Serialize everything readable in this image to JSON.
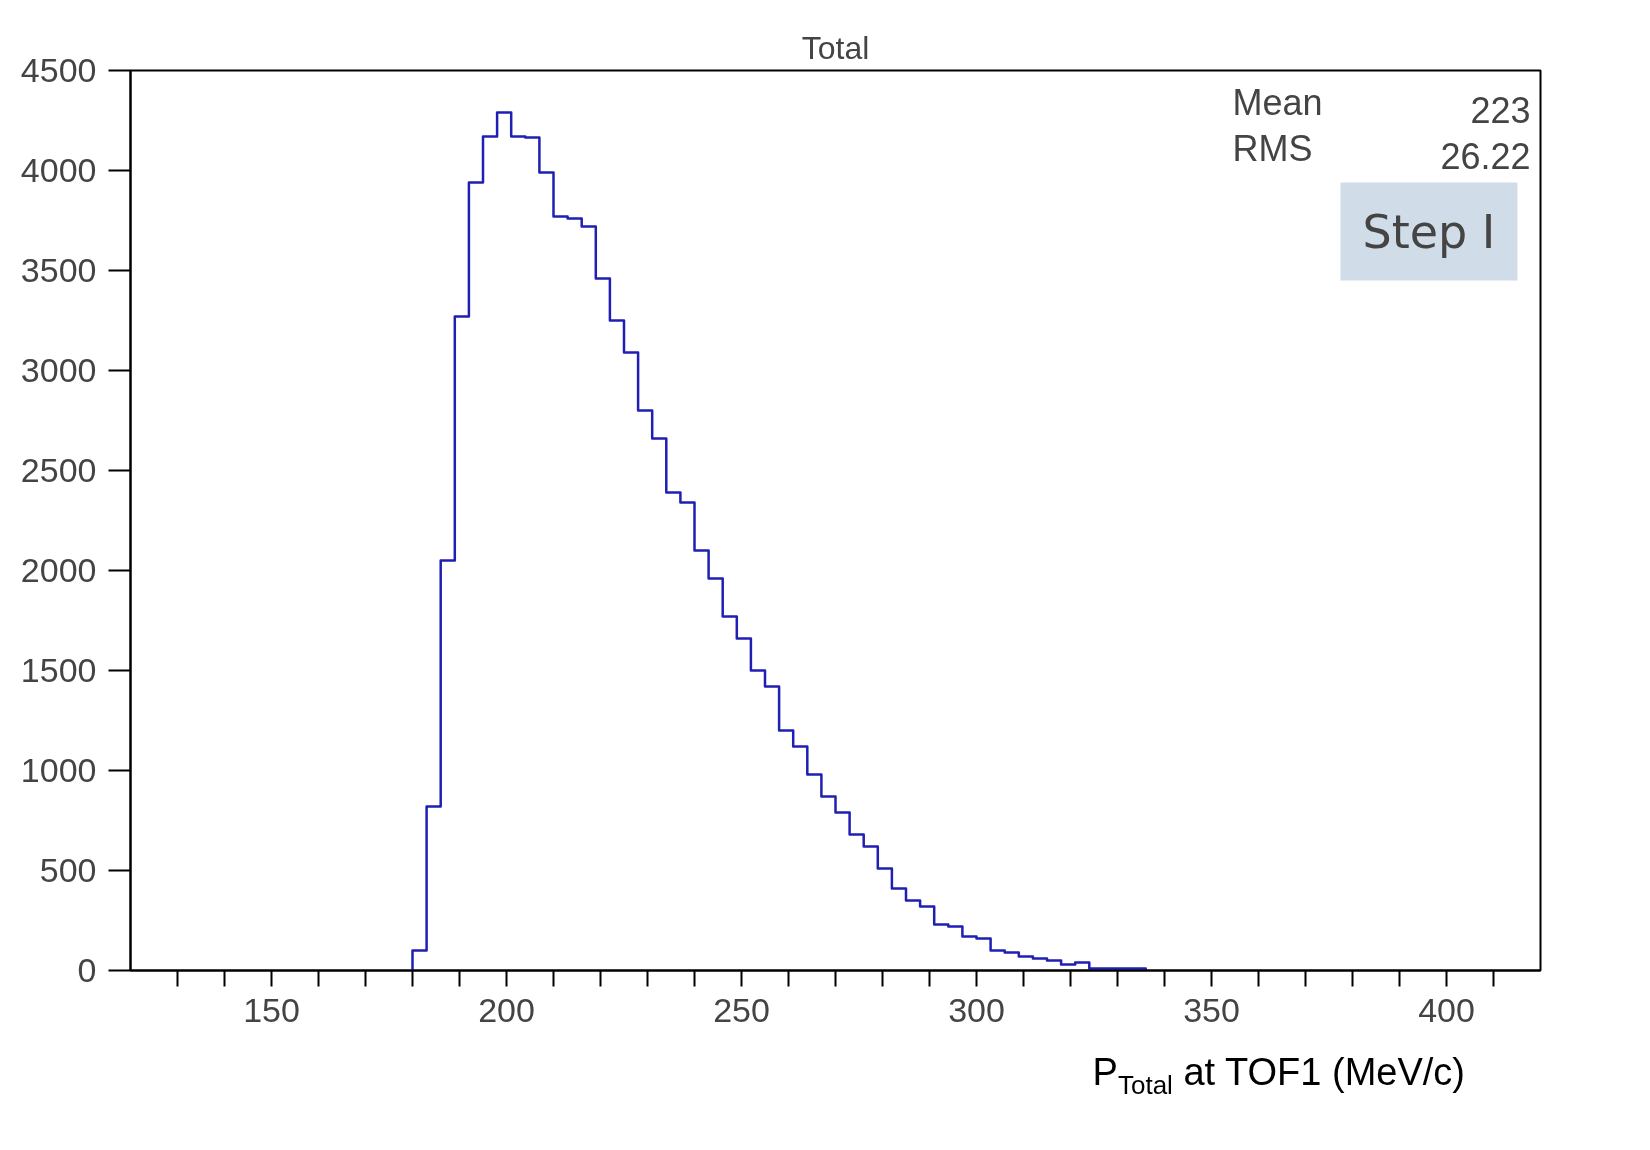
{
  "chart_data": {
    "type": "histogram",
    "title": "Total",
    "xlabel": "P$_{Total}$ at TOF1 (MeV/c)",
    "bins": [
      180,
      183,
      186,
      189,
      192,
      195,
      198,
      201,
      204,
      207,
      210,
      213,
      216,
      219,
      222,
      225,
      228,
      231,
      234,
      237,
      240,
      243,
      246,
      249,
      252,
      255,
      258,
      261,
      264,
      267,
      270,
      273,
      276,
      279,
      282,
      285,
      288,
      291,
      294,
      297,
      300,
      303,
      306,
      309,
      312,
      315,
      318,
      321,
      324,
      327,
      330,
      333,
      336
    ],
    "values": [
      100,
      820,
      2050,
      3270,
      3940,
      4170,
      4290,
      4170,
      4165,
      3990,
      3770,
      3760,
      3720,
      3460,
      3250,
      3090,
      2800,
      2660,
      2390,
      2340,
      2100,
      1960,
      1770,
      1660,
      1500,
      1420,
      1200,
      1120,
      980,
      870,
      790,
      680,
      620,
      510,
      410,
      350,
      320,
      230,
      220,
      170,
      160,
      100,
      90,
      70,
      60,
      50,
      30,
      40,
      10,
      10,
      10,
      10
    ],
    "color": "#1f1fb4",
    "xlim": [
      120,
      420
    ],
    "xticks": [
      {
        "value": 130,
        "label": null
      },
      {
        "value": 140,
        "label": null
      },
      150,
      {
        "value": 160,
        "label": null
      },
      {
        "value": 170,
        "label": null
      },
      {
        "value": 180,
        "label": null
      },
      {
        "value": 190,
        "label": null
      },
      200,
      {
        "value": 210,
        "label": null
      },
      {
        "value": 220,
        "label": null
      },
      {
        "value": 230,
        "label": null
      },
      {
        "value": 240,
        "label": null
      },
      250,
      {
        "value": 260,
        "label": null
      },
      {
        "value": 270,
        "label": null
      },
      {
        "value": 280,
        "label": null
      },
      {
        "value": 290,
        "label": null
      },
      300,
      {
        "value": 310,
        "label": null
      },
      {
        "value": 320,
        "label": null
      },
      {
        "value": 330,
        "label": null
      },
      {
        "value": 340,
        "label": null
      },
      350,
      {
        "value": 360,
        "label": null
      },
      {
        "value": 370,
        "label": null
      },
      {
        "value": 380,
        "label": null
      },
      {
        "value": 390,
        "label": null
      },
      400,
      {
        "value": 410,
        "label": null
      }
    ],
    "ylim": [
      0,
      4500
    ],
    "yticks": [
      0,
      500,
      1000,
      1500,
      2000,
      2500,
      3000,
      3500,
      4000,
      4500
    ],
    "grid": false,
    "annotations": [
      "Mean",
      "223",
      "RMS",
      "26.22",
      "Step I"
    ]
  }
}
